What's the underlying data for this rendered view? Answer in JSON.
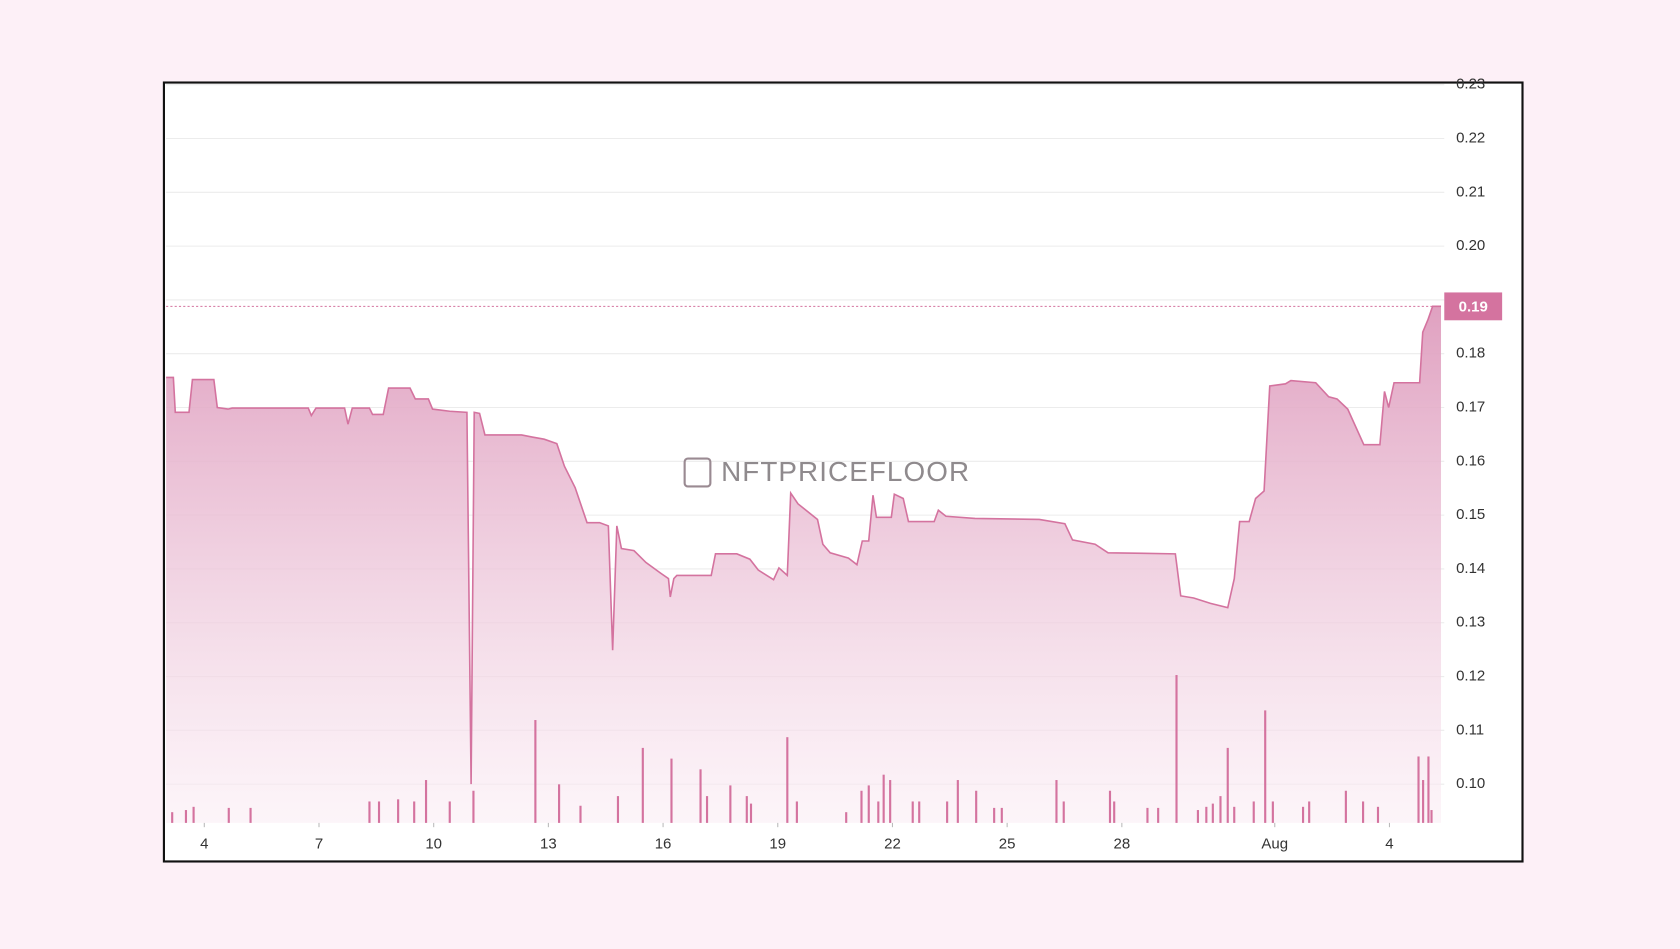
{
  "chart_data": {
    "type": "area",
    "watermark": "NFTPRICEFLOOR",
    "x": [
      3.0,
      3.19,
      3.24,
      3.6,
      3.69,
      4.25,
      4.34,
      4.62,
      4.73,
      6.72,
      6.8,
      6.92,
      7.67,
      7.76,
      7.87,
      8.32,
      8.4,
      8.68,
      8.82,
      9.38,
      9.52,
      9.86,
      9.97,
      10.42,
      10.87,
      10.98,
      11.06,
      11.2,
      11.34,
      12.3,
      12.58,
      12.89,
      13.22,
      13.42,
      13.7,
      14.01,
      14.34,
      14.57,
      14.68,
      14.79,
      14.91,
      15.24,
      15.55,
      15.94,
      16.14,
      16.19,
      16.28,
      16.36,
      17.26,
      17.37,
      17.93,
      18.27,
      18.49,
      18.89,
      19.03,
      19.25,
      19.34,
      19.53,
      20.04,
      20.18,
      20.37,
      20.85,
      21.07,
      21.21,
      21.38,
      21.49,
      21.58,
      21.97,
      22.05,
      22.28,
      22.42,
      23.09,
      23.2,
      23.4,
      24.16,
      25.84,
      26.51,
      26.71,
      27.3,
      27.64,
      29.4,
      29.54,
      29.88,
      30.32,
      30.77,
      30.94,
      31.08,
      31.33,
      31.5,
      31.72,
      31.87,
      32.28,
      32.42,
      33.07,
      33.41,
      33.63,
      33.91,
      34.33,
      34.75,
      34.87,
      34.98,
      35.12,
      35.79,
      35.87,
      36.01,
      36.13,
      36.35
    ],
    "series": [
      {
        "color": "#d4739f",
        "values": [
          0.1756,
          0.1756,
          0.1691,
          0.1691,
          0.1752,
          0.1752,
          0.17,
          0.1697,
          0.1699,
          0.1699,
          0.1685,
          0.1699,
          0.1699,
          0.1669,
          0.1699,
          0.1699,
          0.1687,
          0.1687,
          0.1736,
          0.1736,
          0.1716,
          0.1716,
          0.1697,
          0.1693,
          0.1691,
          0.1,
          0.1691,
          0.1689,
          0.1649,
          0.1649,
          0.1645,
          0.1641,
          0.1633,
          0.1591,
          0.1551,
          0.1486,
          0.1486,
          0.148,
          0.1249,
          0.148,
          0.1438,
          0.1434,
          0.1412,
          0.1392,
          0.1382,
          0.1348,
          0.1382,
          0.1388,
          0.1388,
          0.1428,
          0.1428,
          0.1418,
          0.1398,
          0.138,
          0.1402,
          0.1388,
          0.1541,
          0.1521,
          0.1492,
          0.1446,
          0.143,
          0.142,
          0.1408,
          0.1452,
          0.1452,
          0.1537,
          0.1496,
          0.1496,
          0.1539,
          0.1531,
          0.1488,
          0.1488,
          0.1509,
          0.1498,
          0.1494,
          0.1492,
          0.1484,
          0.1454,
          0.1446,
          0.143,
          0.1428,
          0.135,
          0.1346,
          0.1336,
          0.1328,
          0.1382,
          0.1488,
          0.1488,
          0.1531,
          0.1545,
          0.174,
          0.1744,
          0.175,
          0.1746,
          0.172,
          0.1716,
          0.1697,
          0.1631,
          0.1631,
          0.173,
          0.17,
          0.1746,
          0.1746,
          0.184,
          0.1864,
          0.1888,
          0.1888
        ]
      }
    ],
    "volume": {
      "color": "#d4739f",
      "axis": "y2",
      "x": [
        3.16,
        3.52,
        3.72,
        4.64,
        5.21,
        8.32,
        8.57,
        9.07,
        9.49,
        9.8,
        10.42,
        11.04,
        12.66,
        13.28,
        13.84,
        14.82,
        15.47,
        16.22,
        16.98,
        17.15,
        17.76,
        18.19,
        18.3,
        19.25,
        19.5,
        20.79,
        21.19,
        21.38,
        21.63,
        21.77,
        21.94,
        22.53,
        22.7,
        23.43,
        23.71,
        24.19,
        24.66,
        24.86,
        26.29,
        26.48,
        27.69,
        27.8,
        28.67,
        28.95,
        29.43,
        29.99,
        30.21,
        30.38,
        30.58,
        30.77,
        30.94,
        31.45,
        31.75,
        31.95,
        32.74,
        32.9,
        33.86,
        34.31,
        34.7,
        35.76,
        35.88,
        36.02,
        36.1
      ],
      "values": [
        10,
        12,
        15,
        14,
        14,
        20,
        20,
        22,
        20,
        40,
        20,
        30,
        96,
        36,
        16,
        25,
        70,
        60,
        50,
        25,
        35,
        25,
        18,
        80,
        20,
        10,
        30,
        35,
        20,
        45,
        40,
        20,
        20,
        20,
        40,
        30,
        14,
        14,
        40,
        20,
        30,
        20,
        14,
        14,
        138,
        12,
        15,
        18,
        25,
        70,
        15,
        20,
        105,
        20,
        15,
        20,
        30,
        20,
        15,
        62,
        40,
        62,
        12
      ]
    },
    "last_price": {
      "value": 0.1888,
      "label": "0.19"
    },
    "xlim": [
      3.0,
      36.35
    ],
    "xticks": [
      4,
      7,
      10,
      13,
      16,
      19,
      22,
      25,
      28,
      {
        "value": 32,
        "label": "Aug"
      },
      {
        "value": 35,
        "label": "4"
      }
    ],
    "ylim": [
      0.0928,
      0.2304
    ],
    "yticks": [
      {
        "value": 0.1,
        "label": "0.10"
      },
      0.11,
      0.12,
      0.13,
      0.14,
      0.15,
      0.16,
      0.17,
      0.18,
      0.19,
      {
        "value": 0.2,
        "label": "0.20"
      },
      0.21,
      0.22,
      0.23
    ],
    "y2lim": [
      0,
      691
    ],
    "grid": true
  }
}
